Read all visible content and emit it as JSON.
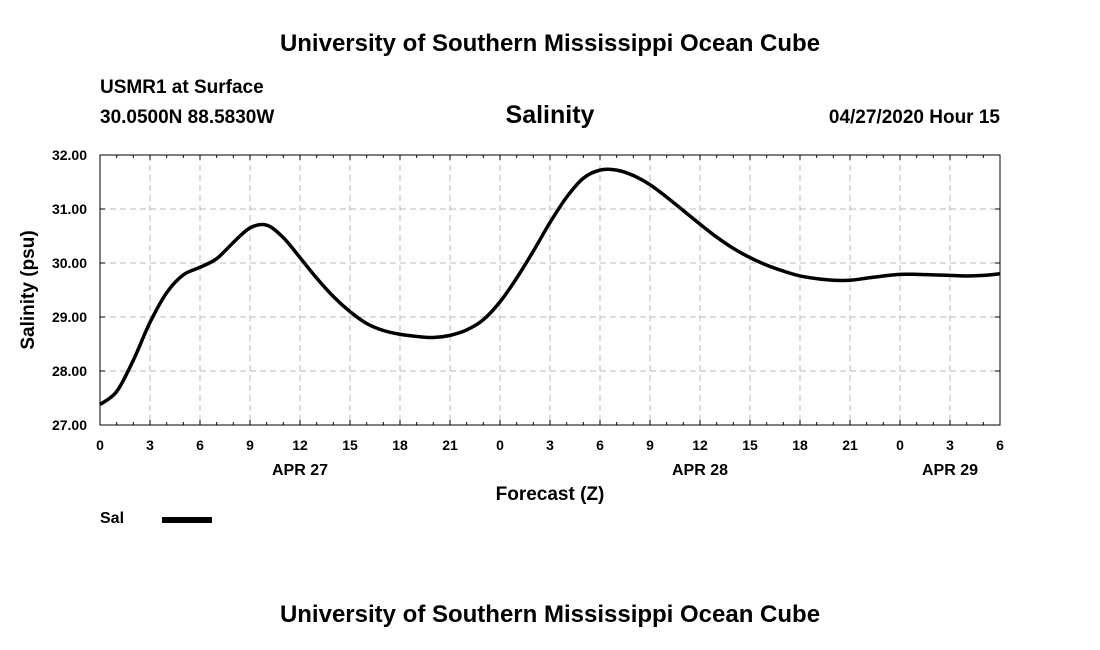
{
  "header": {
    "title_top": "University of Southern Mississippi Ocean Cube",
    "station": "USMR1 at Surface",
    "coords": "30.0500N 88.5830W",
    "variable": "Salinity",
    "timestamp": "04/27/2020 Hour 15"
  },
  "footer": {
    "title_bottom": "University of Southern Mississippi Ocean Cube"
  },
  "legend": {
    "label": "Sal"
  },
  "chart_data": {
    "type": "line",
    "title": "Salinity",
    "xlabel": "Forecast (Z)",
    "ylabel": "Salinity (psu)",
    "ylim": [
      27.0,
      32.0
    ],
    "y_ticks": [
      "27.00",
      "28.00",
      "29.00",
      "30.00",
      "31.00",
      "32.00"
    ],
    "x_ticks": [
      "0",
      "3",
      "6",
      "9",
      "12",
      "15",
      "18",
      "21",
      "0",
      "3",
      "6",
      "9",
      "12",
      "15",
      "18",
      "21",
      "0",
      "3",
      "6"
    ],
    "x_range_hours": [
      0,
      54
    ],
    "date_labels": [
      {
        "label": "APR 27",
        "hour": 12
      },
      {
        "label": "APR 28",
        "hour": 36
      },
      {
        "label": "APR 29",
        "hour": 51
      }
    ],
    "grid": true,
    "series": [
      {
        "name": "Sal",
        "color": "#000000",
        "x": [
          0,
          1,
          2,
          3,
          4,
          5,
          6,
          7,
          8,
          9,
          10,
          11,
          12,
          13,
          14,
          15,
          16,
          17,
          18,
          19,
          20,
          21,
          22,
          23,
          24,
          25,
          26,
          27,
          28,
          29,
          30,
          31,
          32,
          33,
          34,
          35,
          36,
          37,
          38,
          39,
          40,
          41,
          42,
          43,
          44,
          45,
          46,
          47,
          48,
          49,
          50,
          51,
          52,
          53,
          54
        ],
        "y": [
          27.38,
          27.62,
          28.2,
          28.9,
          29.45,
          29.78,
          29.92,
          30.08,
          30.38,
          30.65,
          30.7,
          30.47,
          30.1,
          29.72,
          29.38,
          29.1,
          28.88,
          28.75,
          28.68,
          28.64,
          28.62,
          28.66,
          28.76,
          28.95,
          29.28,
          29.72,
          30.22,
          30.75,
          31.22,
          31.57,
          31.72,
          31.72,
          31.62,
          31.45,
          31.22,
          30.97,
          30.72,
          30.48,
          30.27,
          30.1,
          29.96,
          29.85,
          29.76,
          29.71,
          29.68,
          29.68,
          29.72,
          29.76,
          29.79,
          29.79,
          29.78,
          29.77,
          29.76,
          29.77,
          29.8
        ]
      }
    ]
  }
}
